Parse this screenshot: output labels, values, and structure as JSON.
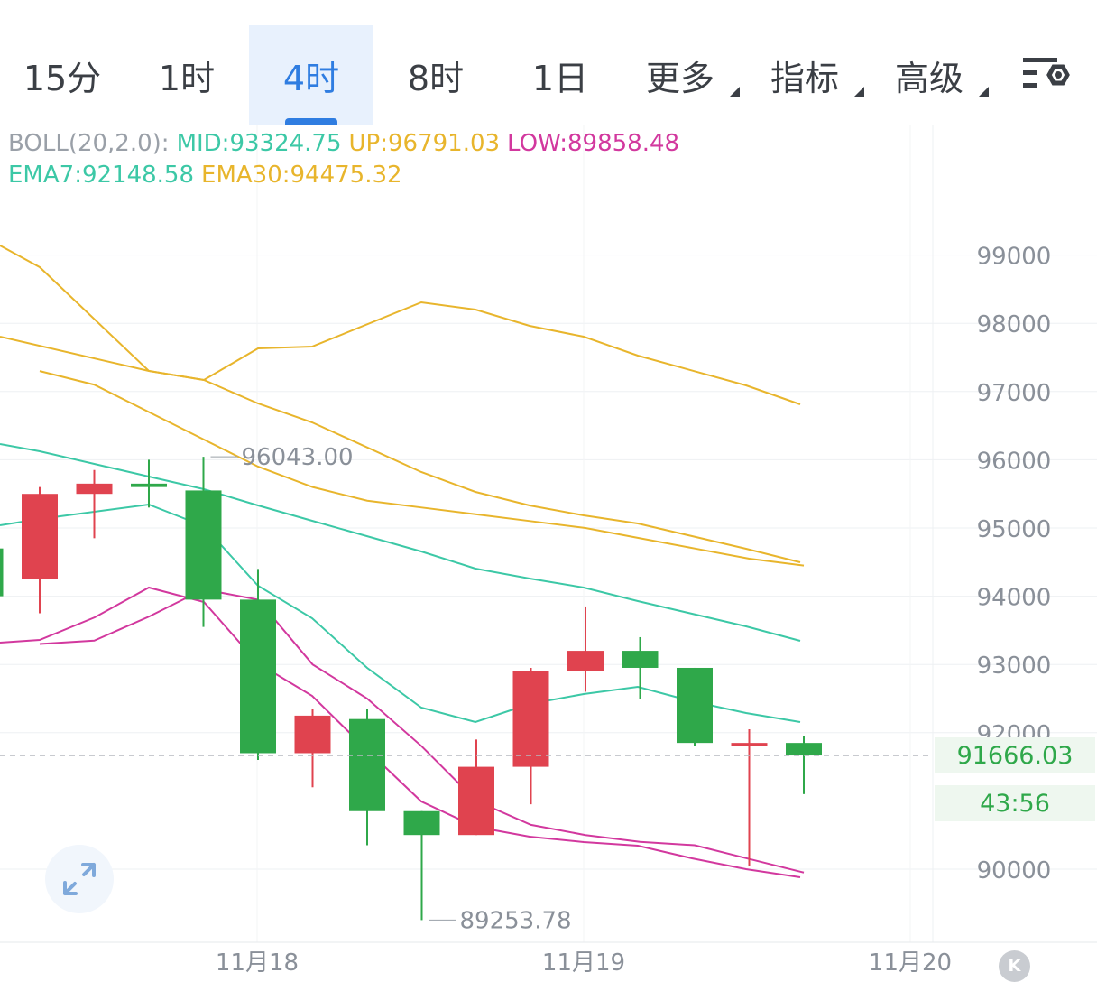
{
  "tabs": [
    {
      "label": "15分",
      "active": false,
      "dropdown": false
    },
    {
      "label": "1时",
      "active": false,
      "dropdown": false
    },
    {
      "label": "4时",
      "active": true,
      "dropdown": false
    },
    {
      "label": "8时",
      "active": false,
      "dropdown": false
    },
    {
      "label": "1日",
      "active": false,
      "dropdown": false
    },
    {
      "label": "更多",
      "active": false,
      "dropdown": true
    },
    {
      "label": "指标",
      "active": false,
      "dropdown": true
    },
    {
      "label": "高级",
      "active": false,
      "dropdown": true
    }
  ],
  "settings_icon": "chart-settings-icon",
  "indicators": {
    "boll_label": "BOLL(20,2.0):",
    "mid": "MID:93324.75",
    "up": "UP:96791.03",
    "low": "LOW:89858.48",
    "ema7": "EMA7:92148.58",
    "ema30": "EMA30:94475.32"
  },
  "colors": {
    "up_candle": "#e0434f",
    "down_candle": "#2fa84a",
    "mid": "#3cc8a6",
    "upper": "#e8b52c",
    "lower": "#d2389e",
    "ema7": "#3cc8a6",
    "ema30": "#e8b52c",
    "accent": "#2f7de1"
  },
  "current_price": "91666.03",
  "countdown": "43:56",
  "max_label": "96043.00",
  "min_label": "89253.78",
  "expand_icon": "expand-arrows-icon",
  "k_button": "K",
  "chart_data": {
    "type": "candlestick",
    "ylim": [
      89000,
      100000
    ],
    "y_ticks": [
      "99000",
      "98000",
      "97000",
      "96000",
      "95000",
      "94000",
      "93000",
      "92000",
      "90000"
    ],
    "x_ticks": [
      "11月18",
      "11月19",
      "11月20"
    ],
    "candles": [
      {
        "open": 94700,
        "high": 94700,
        "low": 93900,
        "close": 94000
      },
      {
        "open": 94250,
        "high": 95600,
        "low": 93750,
        "close": 95500
      },
      {
        "open": 95500,
        "high": 95850,
        "low": 94850,
        "close": 95650
      },
      {
        "open": 95650,
        "high": 96000,
        "low": 95300,
        "close": 95600
      },
      {
        "open": 95550,
        "high": 96043,
        "low": 93550,
        "close": 93950
      },
      {
        "open": 93950,
        "high": 94400,
        "low": 91600,
        "close": 91700
      },
      {
        "open": 91700,
        "high": 92350,
        "low": 91200,
        "close": 92250
      },
      {
        "open": 92200,
        "high": 92350,
        "low": 90350,
        "close": 90850
      },
      {
        "open": 90850,
        "high": 90850,
        "low": 89253.78,
        "close": 90500
      },
      {
        "open": 90500,
        "high": 91900,
        "low": 90500,
        "close": 91500
      },
      {
        "open": 91500,
        "high": 92950,
        "low": 90950,
        "close": 92900
      },
      {
        "open": 92900,
        "high": 93850,
        "low": 92600,
        "close": 93200
      },
      {
        "open": 93200,
        "high": 93400,
        "low": 92500,
        "close": 92950
      },
      {
        "open": 92950,
        "high": 92950,
        "low": 91800,
        "close": 91850
      },
      {
        "open": 91850,
        "high": 92050,
        "low": 90050,
        "close": 91850
      },
      {
        "open": 91850,
        "high": 91950,
        "low": 91100,
        "close": 91666.03
      }
    ],
    "series": [
      {
        "name": "UP",
        "values": [
          97300,
          97100,
          96700,
          96300,
          95900,
          95600,
          95400,
          95300,
          95200,
          95100,
          95000,
          94850,
          94700,
          94550,
          94450
        ]
      },
      {
        "name": "LOW",
        "values": [
          93300,
          93350,
          93700,
          94100,
          93950,
          93000,
          92500,
          91800,
          91000,
          90650,
          90500,
          90400,
          90350,
          90150,
          89950
        ]
      }
    ]
  }
}
